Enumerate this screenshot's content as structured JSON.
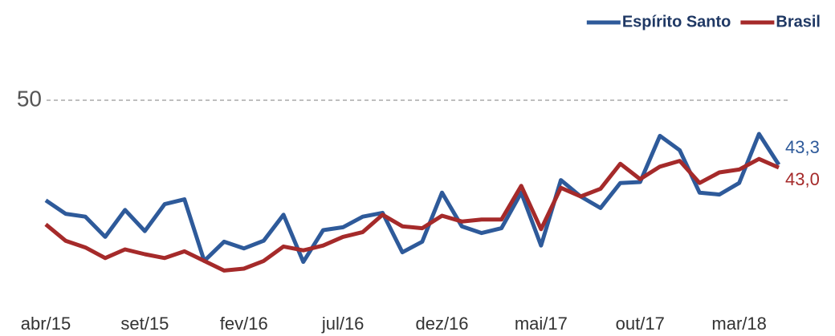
{
  "chart_data": {
    "type": "line",
    "categories": [
      "abr/15",
      null,
      null,
      null,
      null,
      "set/15",
      null,
      null,
      null,
      null,
      "fev/16",
      null,
      null,
      null,
      null,
      "jul/16",
      null,
      null,
      null,
      null,
      "dez/16",
      null,
      null,
      null,
      null,
      "mai/17",
      null,
      null,
      null,
      null,
      "out/17",
      null,
      null,
      null,
      null,
      "mar/18",
      null,
      null
    ],
    "series": [
      {
        "name": "Espírito Santo",
        "color": "#2e5a9a",
        "values": [
          39.6,
          38.2,
          37.9,
          35.8,
          38.6,
          36.4,
          39.2,
          39.7,
          33.3,
          35.3,
          34.6,
          35.4,
          38.1,
          33.2,
          36.5,
          36.8,
          37.9,
          38.3,
          34.2,
          35.3,
          40.4,
          36.9,
          36.2,
          36.7,
          40.4,
          34.9,
          41.7,
          40.0,
          38.8,
          41.4,
          41.5,
          46.3,
          44.8,
          40.4,
          40.2,
          41.4,
          46.5,
          43.3
        ],
        "value_labels": [
          null,
          null,
          null,
          null,
          null,
          null,
          null,
          null,
          null,
          null,
          null,
          null,
          null,
          null,
          null,
          null,
          null,
          null,
          null,
          null,
          null,
          null,
          null,
          null,
          null,
          null,
          null,
          null,
          null,
          null,
          null,
          null,
          null,
          null,
          null,
          null,
          null,
          "43,3"
        ]
      },
      {
        "name": "Brasil",
        "color": "#a52a2a",
        "values": [
          37.1,
          35.4,
          34.7,
          33.6,
          34.5,
          34.0,
          33.6,
          34.3,
          33.3,
          32.3,
          32.5,
          33.3,
          34.8,
          34.4,
          34.9,
          35.8,
          36.3,
          38.1,
          36.9,
          36.7,
          38.0,
          37.4,
          37.6,
          37.6,
          41.1,
          36.6,
          40.9,
          40.0,
          40.8,
          43.4,
          41.8,
          43.1,
          43.7,
          41.4,
          42.5,
          42.8,
          43.9,
          43.0
        ],
        "value_labels": [
          null,
          null,
          null,
          null,
          null,
          null,
          null,
          null,
          null,
          null,
          null,
          null,
          null,
          null,
          null,
          null,
          null,
          null,
          null,
          null,
          null,
          null,
          null,
          null,
          null,
          null,
          null,
          null,
          null,
          null,
          null,
          null,
          null,
          null,
          null,
          null,
          null,
          "43,0"
        ]
      }
    ],
    "ylim": [
      30,
      52
    ],
    "yticks": [
      50
    ],
    "grid": true,
    "legend": "top-right"
  }
}
